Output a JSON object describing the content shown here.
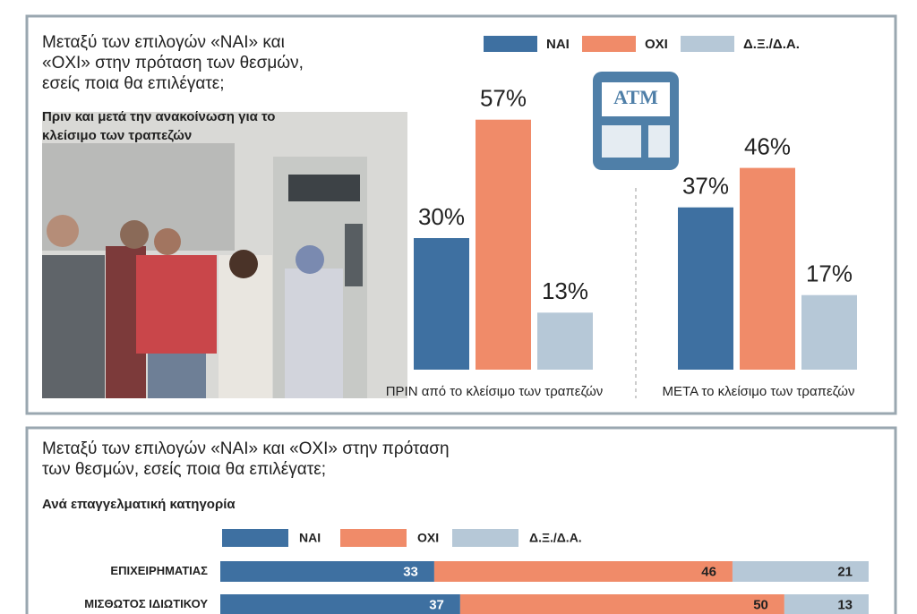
{
  "chart_data": [
    {
      "type": "bar",
      "orientation": "vertical",
      "title": "Μεταξύ των επιλογών «ΝΑΙ» και «ΟΧΙ» στην πρόταση των θεσμών, εσείς ποια θα επιλέγατε;",
      "subtitle": "Πριν και μετά την ανακοίνωση για το κλείσιμο των τραπεζών",
      "icon_label": "ATM",
      "categories": [
        "ΠΡΙΝ από το κλείσιμο των τραπεζών",
        "ΜΕΤΑ το κλείσιμο των τραπεζών"
      ],
      "series": [
        {
          "name": "ΝΑΙ",
          "color": "#3e70a1",
          "values": [
            30,
            37
          ],
          "value_labels": [
            "30%",
            "37%"
          ]
        },
        {
          "name": "ΟΧΙ",
          "color": "#f08b69",
          "values": [
            57,
            46
          ],
          "value_labels": [
            "57%",
            "46%"
          ]
        },
        {
          "name": "Δ.Ξ./Δ.Α.",
          "color": "#b6c8d7",
          "values": [
            13,
            17
          ],
          "value_labels": [
            "13%",
            "17%"
          ]
        }
      ]
    },
    {
      "type": "bar",
      "orientation": "horizontal",
      "stacked": true,
      "title": "Μεταξύ των επιλογών «ΝΑΙ» και «ΟΧΙ» στην πρόταση των θεσμών, εσείς ποια θα επιλέγατε;",
      "subtitle": "Ανά επαγγελματική κατηγορία",
      "categories": [
        "ΕΠΙΧΕΙΡΗΜΑΤΙΑΣ",
        "ΜΙΣΘΩΤΟΣ ΙΔΙΩΤΙΚΟΥ"
      ],
      "series": [
        {
          "name": "ΝΑΙ",
          "color": "#3e70a1",
          "values": [
            33,
            37
          ]
        },
        {
          "name": "ΟΧΙ",
          "color": "#f08b69",
          "values": [
            46,
            50
          ]
        },
        {
          "name": "Δ.Ξ./Δ.Α.",
          "color": "#b6c8d7",
          "values": [
            21,
            13
          ]
        }
      ]
    }
  ]
}
